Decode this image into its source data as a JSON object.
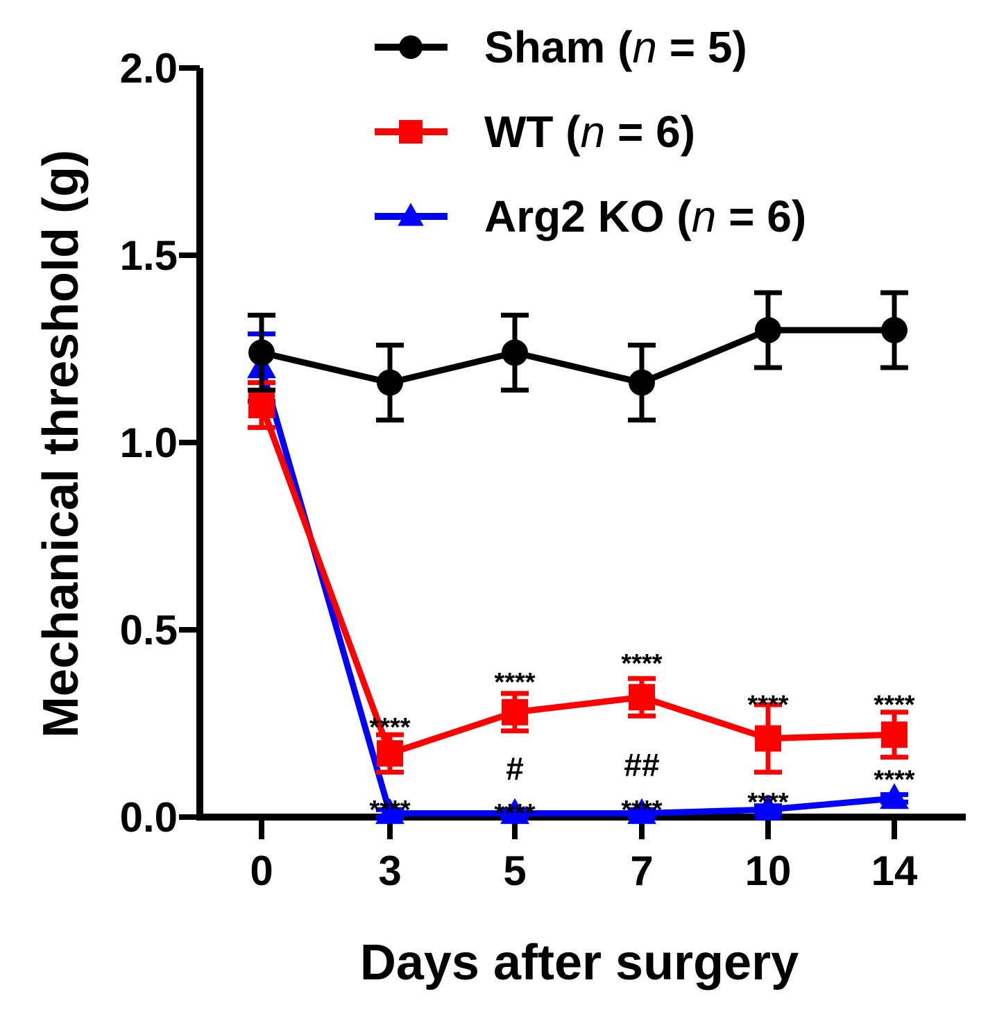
{
  "chart_data": {
    "type": "line",
    "title": "",
    "xlabel": "Days after surgery",
    "ylabel": "Mechanical threshold (g)",
    "categories": [
      "0",
      "3",
      "5",
      "7",
      "10",
      "14"
    ],
    "yticks": [
      "0.0",
      "0.5",
      "1.0",
      "1.5",
      "2.0"
    ],
    "ylim": [
      0,
      2.0
    ],
    "grid": false,
    "legend_position": "top",
    "series": [
      {
        "name": "Sham",
        "n_label": "n",
        "n_value": "= 5)",
        "name_prefix": "Sham (",
        "color": "#000000",
        "marker": "circle",
        "values": [
          1.24,
          1.16,
          1.24,
          1.16,
          1.3,
          1.3
        ],
        "errors": [
          0.1,
          0.1,
          0.1,
          0.1,
          0.1,
          0.1
        ]
      },
      {
        "name": "WT",
        "n_label": "n",
        "n_value": "= 6)",
        "name_prefix": "WT (",
        "color": "#ff0000",
        "marker": "square",
        "values": [
          1.1,
          0.17,
          0.28,
          0.32,
          0.21,
          0.22
        ],
        "errors": [
          0.06,
          0.05,
          0.05,
          0.05,
          0.09,
          0.06
        ]
      },
      {
        "name": "Arg2 KO",
        "n_label": "n",
        "n_value": "= 6)",
        "name_prefix": "Arg2 KO (",
        "color": "#0000ff",
        "marker": "triangle",
        "values": [
          1.2,
          0.01,
          0.01,
          0.01,
          0.02,
          0.05
        ],
        "errors": [
          0.09,
          0.01,
          0.01,
          0.01,
          0.01,
          0.01
        ]
      }
    ],
    "annotations": [
      {
        "category": "3",
        "value": 0.25,
        "text": "****",
        "type": "star"
      },
      {
        "category": "5",
        "value": 0.37,
        "text": "****",
        "type": "star"
      },
      {
        "category": "7",
        "value": 0.42,
        "text": "****",
        "type": "star"
      },
      {
        "category": "10",
        "value": 0.31,
        "text": "****",
        "type": "star"
      },
      {
        "category": "14",
        "value": 0.31,
        "text": "****",
        "type": "star"
      },
      {
        "category": "3",
        "value": 0.03,
        "text": "****",
        "type": "star"
      },
      {
        "category": "5",
        "value": 0.02,
        "text": "****",
        "type": "star"
      },
      {
        "category": "7",
        "value": 0.03,
        "text": "****",
        "type": "star"
      },
      {
        "category": "10",
        "value": 0.05,
        "text": "****",
        "type": "star"
      },
      {
        "category": "14",
        "value": 0.11,
        "text": "****",
        "type": "star"
      },
      {
        "category": "5",
        "value": 0.13,
        "text": "#",
        "type": "hash"
      },
      {
        "category": "7",
        "value": 0.14,
        "text": "##",
        "type": "hash"
      }
    ]
  }
}
